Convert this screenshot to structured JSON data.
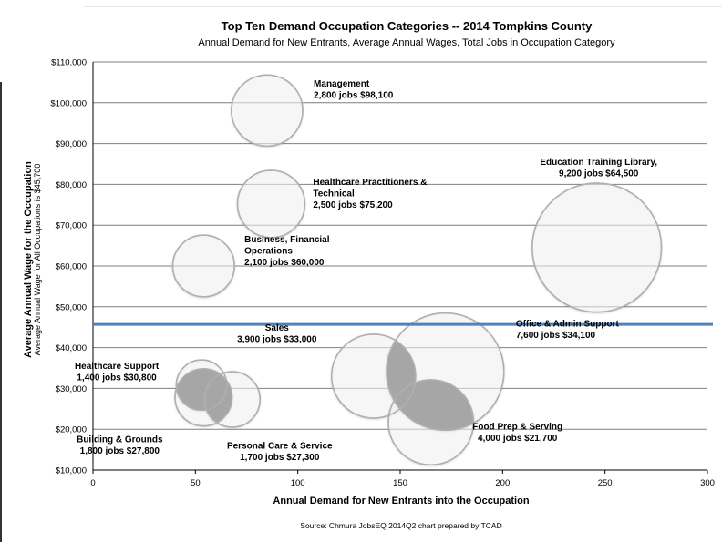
{
  "chart_data": {
    "type": "scatter",
    "title": "Top Ten Demand Occupation Categories -- 2014 Tompkins County",
    "subtitle": "Annual Demand for New Entrants, Average Annual Wages, Total Jobs in Occupation Category",
    "xlabel": "Annual Demand for New Entrants into the Occupation",
    "ylabel": "Average Annual Wage for the Occupation",
    "ylabel_sub": "Average Annual Wage for All Occupations is $45,700",
    "source": "Source: Chmura JobsEQ 2014Q2 chart prepared by TCAD",
    "xlim": [
      0,
      300
    ],
    "ylim": [
      10000,
      110000
    ],
    "x_ticks": [
      "0",
      "50",
      "100",
      "150",
      "200",
      "250",
      "300"
    ],
    "y_ticks": [
      "$10,000",
      "$20,000",
      "$30,000",
      "$40,000",
      "$50,000",
      "$60,000",
      "$70,000",
      "$80,000",
      "$90,000",
      "$100,000",
      "$110,000"
    ],
    "grid": true,
    "reference_line": {
      "y": 45700,
      "color": "#4f81bd"
    },
    "colors": {
      "highlight": "#a6a6a6",
      "bubble_edge": "#b0b0b0",
      "grid": "#7f7f7f"
    },
    "series": [
      {
        "name": "Management",
        "x": 85,
        "y": 98100,
        "jobs": 2800,
        "label": [
          "Management",
          "2,800 jobs $98,100"
        ],
        "label_pos": "right"
      },
      {
        "name": "Healthcare Practitioners & Technical",
        "x": 87,
        "y": 75200,
        "jobs": 2500,
        "label": [
          "Healthcare Practitioners &",
          "Technical",
          "2,500 jobs $75,200"
        ],
        "label_pos": "right"
      },
      {
        "name": "Business, Financial Operations",
        "x": 54,
        "y": 60000,
        "jobs": 2100,
        "label": [
          "Business, Financial",
          "Operations",
          "2,100 jobs $60,000"
        ],
        "label_pos": "right"
      },
      {
        "name": "Education Training Library",
        "x": 246,
        "y": 64500,
        "jobs": 9200,
        "label": [
          "Education Training Library,",
          "9,200 jobs $64,500"
        ],
        "label_pos": "above"
      },
      {
        "name": "Sales",
        "x": 137,
        "y": 33000,
        "jobs": 3900,
        "label": [
          "Sales",
          "3,900 jobs $33,000"
        ],
        "label_pos": "above-left"
      },
      {
        "name": "Office & Admin Support",
        "x": 172,
        "y": 34100,
        "jobs": 7600,
        "label": [
          "Office & Admin Support",
          "7,600 jobs $34,100"
        ],
        "label_pos": "right"
      },
      {
        "name": "Food Prep & Serving",
        "x": 165,
        "y": 21700,
        "jobs": 4000,
        "label": [
          "Food Prep & Serving",
          "4,000 jobs $21,700"
        ],
        "label_pos": "below-right"
      },
      {
        "name": "Healthcare Support",
        "x": 53,
        "y": 30800,
        "jobs": 1400,
        "label": [
          "Healthcare Support",
          "1,400 jobs $30,800"
        ],
        "label_pos": "left"
      },
      {
        "name": "Building & Grounds",
        "x": 54,
        "y": 27800,
        "jobs": 1800,
        "label": [
          "Building & Grounds",
          "1,800 jobs $27,800"
        ],
        "label_pos": "below-left"
      },
      {
        "name": "Personal Care & Service",
        "x": 68,
        "y": 27300,
        "jobs": 1700,
        "label": [
          "Personal Care & Service",
          "1,700 jobs $27,300"
        ],
        "label_pos": "below"
      }
    ],
    "overlaps": [
      [
        "Healthcare Support",
        "Building & Grounds"
      ],
      [
        "Building & Grounds",
        "Personal Care & Service"
      ],
      [
        "Sales",
        "Office & Admin Support"
      ],
      [
        "Office & Admin Support",
        "Food Prep & Serving"
      ]
    ]
  }
}
